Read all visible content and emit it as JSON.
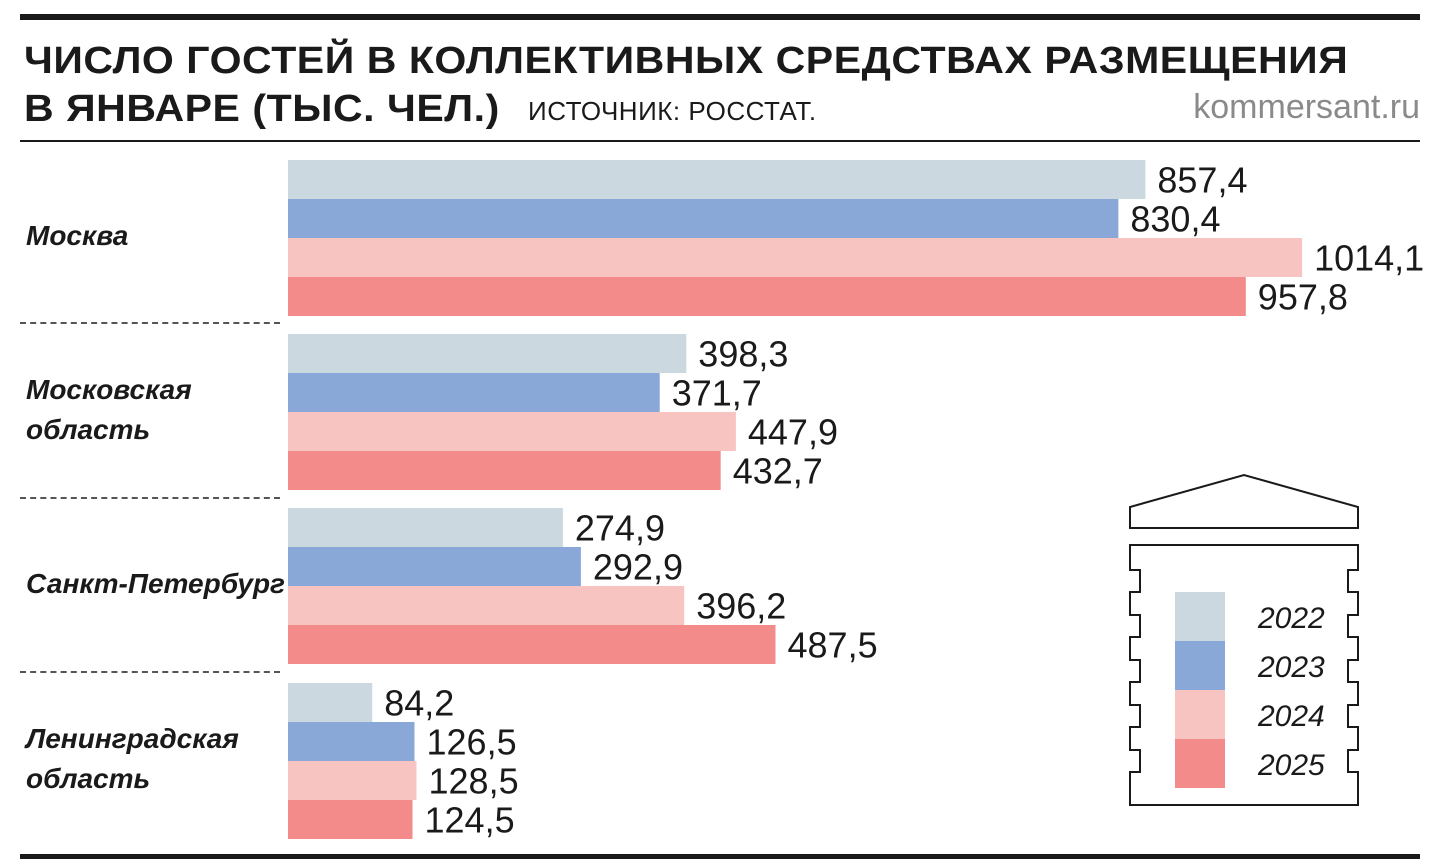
{
  "header": {
    "title_line1": "ЧИСЛО ГОСТЕЙ В КОЛЛЕКТИВНЫХ СРЕДСТВАХ РАЗМЕЩЕНИЯ",
    "title_line2": "В ЯНВАРЕ (ТЫС. ЧЕЛ.)",
    "source": "ИСТОЧНИК: РОССТАТ.",
    "brand": "kommersant.ru"
  },
  "colors": {
    "2022": "#cbd8e0",
    "2023": "#89a8d8",
    "2024": "#f8c4c2",
    "2025": "#f48b8b"
  },
  "legend_icon": "building-icon",
  "chart_data": {
    "type": "bar",
    "orientation": "horizontal",
    "title": "ЧИСЛО ГОСТЕЙ В КОЛЛЕКТИВНЫХ СРЕДСТВАХ РАЗМЕЩЕНИЯ В ЯНВАРЕ (ТЫС. ЧЕЛ.)",
    "categories": [
      "Москва",
      "Московская область",
      "Санкт-Петербург",
      "Ленинградская область"
    ],
    "category_lines": [
      [
        "Москва"
      ],
      [
        "Московская",
        "область"
      ],
      [
        "Санкт-Петербург"
      ],
      [
        "Ленинградская",
        "область"
      ]
    ],
    "series": [
      {
        "name": "2022",
        "values": [
          857.4,
          398.3,
          274.9,
          84.2
        ],
        "labels": [
          "857,4",
          "398,3",
          "274,9",
          "84,2"
        ]
      },
      {
        "name": "2023",
        "values": [
          830.4,
          371.7,
          292.9,
          126.5
        ],
        "labels": [
          "830,4",
          "371,7",
          "292,9",
          "126,5"
        ]
      },
      {
        "name": "2024",
        "values": [
          1014.1,
          447.9,
          396.2,
          128.5
        ],
        "labels": [
          "1014,1",
          "447,9",
          "396,2",
          "128,5"
        ]
      },
      {
        "name": "2025",
        "values": [
          957.8,
          432.7,
          487.5,
          124.5
        ],
        "labels": [
          "957,8",
          "432,7",
          "487,5",
          "124,5"
        ]
      }
    ],
    "legend_position": "bottom-right",
    "grid": false
  }
}
